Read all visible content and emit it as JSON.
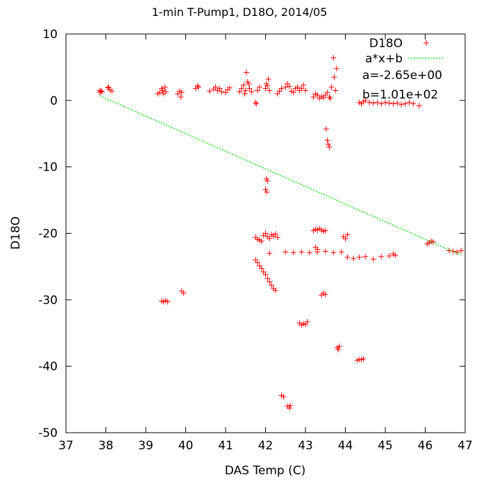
{
  "chart_data": {
    "type": "scatter",
    "title": "1-min T-Pump1, D18O, 2014/05",
    "xlabel": "DAS Temp (C)",
    "ylabel": "D18O",
    "xlim": [
      37,
      47
    ],
    "ylim": [
      -50,
      10
    ],
    "xticks": [
      "37",
      "38",
      "39",
      "40",
      "41",
      "42",
      "43",
      "44",
      "45",
      "46",
      "47"
    ],
    "yticks": [
      "10",
      "0",
      "-10",
      "-20",
      "-30",
      "-40",
      "-50"
    ],
    "legend_position": "top-right",
    "grid": false,
    "series": [
      {
        "name": "D18O",
        "kind": "points",
        "marker": "+",
        "color": "#ff0000",
        "points": [
          [
            37.85,
            1.5
          ],
          [
            37.85,
            1.2
          ],
          [
            37.88,
            1.4
          ],
          [
            37.9,
            1.3
          ],
          [
            38.05,
            1.9
          ],
          [
            38.07,
            2.0
          ],
          [
            38.1,
            1.6
          ],
          [
            38.15,
            1.4
          ],
          [
            39.3,
            1.0
          ],
          [
            39.35,
            1.2
          ],
          [
            39.4,
            1.8
          ],
          [
            39.42,
            1.5
          ],
          [
            39.45,
            1.0
          ],
          [
            39.48,
            2.0
          ],
          [
            39.5,
            1.3
          ],
          [
            39.8,
            1.0
          ],
          [
            39.85,
            1.4
          ],
          [
            39.88,
            0.5
          ],
          [
            39.9,
            1.2
          ],
          [
            40.25,
            1.8
          ],
          [
            40.3,
            2.2
          ],
          [
            40.32,
            2.0
          ],
          [
            40.6,
            1.4
          ],
          [
            40.7,
            1.7
          ],
          [
            40.75,
            2.0
          ],
          [
            40.8,
            1.5
          ],
          [
            40.85,
            1.8
          ],
          [
            40.9,
            1.3
          ],
          [
            41.0,
            1.2
          ],
          [
            41.05,
            1.6
          ],
          [
            41.1,
            1.9
          ],
          [
            41.35,
            1.3
          ],
          [
            41.4,
            1.8
          ],
          [
            41.45,
            2.3
          ],
          [
            41.48,
            1.0
          ],
          [
            41.5,
            1.5
          ],
          [
            41.52,
            4.2
          ],
          [
            41.55,
            2.8
          ],
          [
            41.58,
            2.5
          ],
          [
            41.6,
            1.8
          ],
          [
            41.65,
            1.3
          ],
          [
            41.75,
            -0.3
          ],
          [
            41.77,
            -0.5
          ],
          [
            41.8,
            1.5
          ],
          [
            41.85,
            2.0
          ],
          [
            42.0,
            1.8
          ],
          [
            42.02,
            2.5
          ],
          [
            42.05,
            2.2
          ],
          [
            42.07,
            3.2
          ],
          [
            42.1,
            1.5
          ],
          [
            42.3,
            1.0
          ],
          [
            42.35,
            1.4
          ],
          [
            42.4,
            1.8
          ],
          [
            42.5,
            2.0
          ],
          [
            42.55,
            2.5
          ],
          [
            42.6,
            2.1
          ],
          [
            42.65,
            1.4
          ],
          [
            42.7,
            1.2
          ],
          [
            42.75,
            1.8
          ],
          [
            42.8,
            2.0
          ],
          [
            42.85,
            1.5
          ],
          [
            42.9,
            1.8
          ],
          [
            42.95,
            2.3
          ],
          [
            43.0,
            1.5
          ],
          [
            43.2,
            0.5
          ],
          [
            43.25,
            1.0
          ],
          [
            43.3,
            0.8
          ],
          [
            43.35,
            0.3
          ],
          [
            43.4,
            0.6
          ],
          [
            43.45,
            0.4
          ],
          [
            43.5,
            0.8
          ],
          [
            43.55,
            1.2
          ],
          [
            43.6,
            0.5
          ],
          [
            43.62,
            0.3
          ],
          [
            43.65,
            2.0
          ],
          [
            43.7,
            6.4
          ],
          [
            43.72,
            3.5
          ],
          [
            43.75,
            1.5
          ],
          [
            43.78,
            4.8
          ],
          [
            43.52,
            -4.3
          ],
          [
            43.55,
            -6.0
          ],
          [
            43.57,
            -6.6
          ],
          [
            43.6,
            -7.0
          ],
          [
            44.35,
            -0.3
          ],
          [
            44.4,
            -0.5
          ],
          [
            44.45,
            -0.2
          ],
          [
            44.5,
            0.0
          ],
          [
            44.6,
            -0.3
          ],
          [
            44.7,
            -0.4
          ],
          [
            44.8,
            -0.3
          ],
          [
            44.9,
            -0.5
          ],
          [
            45.0,
            -0.3
          ],
          [
            45.1,
            -0.4
          ],
          [
            45.2,
            -0.5
          ],
          [
            45.3,
            -0.4
          ],
          [
            45.4,
            -0.6
          ],
          [
            45.5,
            -0.5
          ],
          [
            45.6,
            -0.3
          ],
          [
            45.7,
            -0.5
          ],
          [
            45.85,
            -0.8
          ],
          [
            42.02,
            -11.8
          ],
          [
            42.05,
            -12.1
          ],
          [
            42.0,
            -13.4
          ],
          [
            42.03,
            -13.8
          ],
          [
            41.75,
            -20.6
          ],
          [
            41.8,
            -20.9
          ],
          [
            41.85,
            -21.0
          ],
          [
            41.9,
            -21.2
          ],
          [
            41.95,
            -20.3
          ],
          [
            42.0,
            -20.0
          ],
          [
            42.05,
            -20.5
          ],
          [
            42.1,
            -20.8
          ],
          [
            42.15,
            -20.2
          ],
          [
            42.2,
            -20.4
          ],
          [
            42.25,
            -20.1
          ],
          [
            42.3,
            -20.6
          ],
          [
            43.2,
            -19.6
          ],
          [
            43.25,
            -19.4
          ],
          [
            43.3,
            -19.5
          ],
          [
            43.35,
            -19.3
          ],
          [
            43.4,
            -19.5
          ],
          [
            43.45,
            -19.7
          ],
          [
            43.5,
            -19.6
          ],
          [
            43.95,
            -20.5
          ],
          [
            44.0,
            -20.8
          ],
          [
            44.05,
            -20.2
          ],
          [
            42.1,
            -23.0
          ],
          [
            42.5,
            -22.8
          ],
          [
            42.7,
            -22.9
          ],
          [
            42.9,
            -22.8
          ],
          [
            43.1,
            -22.9
          ],
          [
            43.3,
            -22.8
          ],
          [
            43.5,
            -22.7
          ],
          [
            43.7,
            -22.9
          ],
          [
            43.9,
            -22.8
          ],
          [
            44.05,
            -23.6
          ],
          [
            44.2,
            -23.8
          ],
          [
            44.35,
            -23.6
          ],
          [
            44.5,
            -23.5
          ],
          [
            44.7,
            -23.9
          ],
          [
            44.9,
            -23.5
          ],
          [
            45.1,
            -23.4
          ],
          [
            45.2,
            -23.1
          ],
          [
            45.25,
            -23.3
          ],
          [
            46.05,
            -21.6
          ],
          [
            46.1,
            -21.4
          ],
          [
            46.15,
            -21.2
          ],
          [
            46.2,
            -21.3
          ],
          [
            46.6,
            -22.6
          ],
          [
            46.7,
            -22.7
          ],
          [
            46.8,
            -22.8
          ],
          [
            46.9,
            -22.6
          ],
          [
            43.25,
            -22.1
          ],
          [
            43.3,
            -22.4
          ],
          [
            41.75,
            -24.0
          ],
          [
            41.8,
            -24.4
          ],
          [
            41.85,
            -24.9
          ],
          [
            41.9,
            -25.3
          ],
          [
            41.95,
            -25.8
          ],
          [
            42.0,
            -26.2
          ],
          [
            42.05,
            -26.8
          ],
          [
            42.1,
            -27.3
          ],
          [
            42.15,
            -27.8
          ],
          [
            42.2,
            -28.3
          ],
          [
            42.25,
            -28.6
          ],
          [
            39.4,
            -30.2
          ],
          [
            39.45,
            -30.3
          ],
          [
            39.5,
            -30.1
          ],
          [
            39.55,
            -30.3
          ],
          [
            39.9,
            -28.7
          ],
          [
            39.95,
            -29.0
          ],
          [
            43.4,
            -29.3
          ],
          [
            43.45,
            -29.0
          ],
          [
            43.5,
            -29.2
          ],
          [
            42.85,
            -33.5
          ],
          [
            42.9,
            -33.8
          ],
          [
            42.95,
            -33.6
          ],
          [
            43.0,
            -33.7
          ],
          [
            43.05,
            -33.3
          ],
          [
            43.8,
            -37.2
          ],
          [
            43.82,
            -37.5
          ],
          [
            43.85,
            -37.0
          ],
          [
            44.3,
            -39.1
          ],
          [
            44.35,
            -39.0
          ],
          [
            44.4,
            -39.0
          ],
          [
            44.45,
            -38.9
          ],
          [
            42.4,
            -44.4
          ],
          [
            42.45,
            -44.6
          ],
          [
            42.55,
            -46.0
          ],
          [
            42.6,
            -46.3
          ],
          [
            42.62,
            -45.9
          ]
        ]
      },
      {
        "name": "a*x+b",
        "kind": "fit",
        "color": "#00dd00",
        "a": -2.65,
        "b": 101,
        "x_range": [
          37.85,
          46.9
        ]
      }
    ],
    "annotations": [
      "a=-2.65e+00",
      "b=1.01e+02"
    ]
  }
}
